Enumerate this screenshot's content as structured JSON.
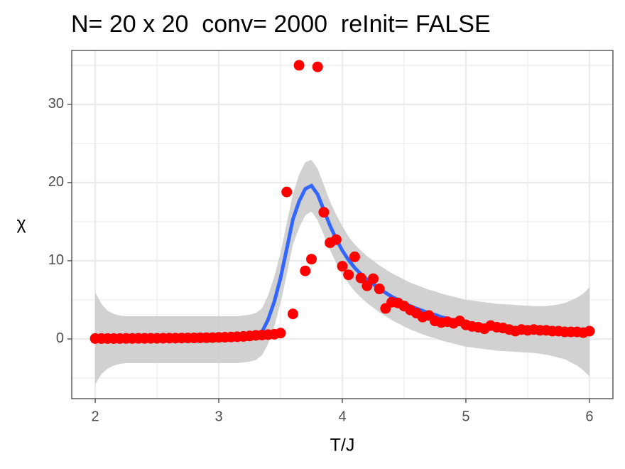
{
  "chart_data": {
    "type": "scatter",
    "title": "N= 20 x 20  conv= 2000  reInit= FALSE",
    "xlabel": "T/J",
    "ylabel": "χ",
    "xlim": [
      1.81,
      6.19
    ],
    "ylim": [
      -7.64,
      36.9
    ],
    "xticks": [
      2,
      3,
      4,
      5,
      6
    ],
    "yticks": [
      0,
      10,
      20,
      30
    ],
    "xminor": [
      2.5,
      3.5,
      4.5,
      5.5
    ],
    "yminor": [
      -5,
      5,
      15,
      25,
      35
    ],
    "grid": true,
    "x": [
      2,
      2.05,
      2.1,
      2.15,
      2.2,
      2.25,
      2.3,
      2.35,
      2.4,
      2.45,
      2.5,
      2.55,
      2.6,
      2.65,
      2.7,
      2.75,
      2.8,
      2.85,
      2.9,
      2.95,
      3,
      3.05,
      3.1,
      3.15,
      3.2,
      3.25,
      3.3,
      3.35,
      3.4,
      3.45,
      3.5,
      3.55,
      3.6,
      3.65,
      3.7,
      3.75,
      3.8,
      3.85,
      3.9,
      3.95,
      4,
      4.05,
      4.1,
      4.15,
      4.2,
      4.25,
      4.3,
      4.35,
      4.4,
      4.45,
      4.5,
      4.55,
      4.6,
      4.65,
      4.7,
      4.75,
      4.8,
      4.85,
      4.9,
      4.95,
      5,
      5.05,
      5.1,
      5.15,
      5.2,
      5.25,
      5.3,
      5.35,
      5.4,
      5.45,
      5.5,
      5.55,
      5.6,
      5.65,
      5.7,
      5.75,
      5.8,
      5.85,
      5.9,
      5.95,
      6
    ],
    "points": {
      "color": "#ff0000",
      "values": [
        0.05,
        0.05,
        0.05,
        0.05,
        0.05,
        0.06,
        0.06,
        0.07,
        0.07,
        0.08,
        0.08,
        0.09,
        0.1,
        0.1,
        0.11,
        0.12,
        0.13,
        0.14,
        0.15,
        0.17,
        0.2,
        0.22,
        0.25,
        0.28,
        0.32,
        0.38,
        0.45,
        0.5,
        0.55,
        0.6,
        0.75,
        18.8,
        3.2,
        35,
        8.7,
        10.2,
        34.8,
        16.2,
        12.3,
        12.7,
        9.3,
        8.2,
        10.5,
        7.8,
        6.8,
        7.7,
        6.4,
        3.9,
        4.7,
        4.6,
        4.2,
        3.7,
        3.3,
        2.8,
        3.0,
        2.3,
        2.1,
        2.2,
        2.0,
        2.3,
        1.8,
        1.6,
        1.5,
        1.3,
        1.7,
        1.5,
        1.4,
        1.2,
        1.0,
        1.2,
        1.1,
        1.2,
        1.1,
        1.1,
        1.0,
        1.0,
        0.9,
        0.9,
        0.9,
        0.8,
        1.0
      ]
    },
    "smooth": {
      "color": "#3366ff",
      "fill": "#cccccc",
      "values": [
        0.1,
        0,
        -0.1,
        -0.1,
        -0.1,
        -0.1,
        -0.1,
        -0.1,
        -0.1,
        -0.1,
        -0.1,
        -0.1,
        -0.1,
        -0.1,
        -0.1,
        -0.1,
        -0.1,
        -0.1,
        -0.1,
        -0.1,
        -0.1,
        -0.1,
        -0.1,
        -0.1,
        0,
        0.1,
        0.3,
        0.9,
        2.5,
        4.8,
        7.8,
        11.5,
        15.3,
        17.6,
        19.2,
        19.6,
        18.5,
        16.5,
        14.5,
        12.8,
        11.3,
        10.1,
        9.1,
        8.3,
        7.6,
        7.0,
        6.4,
        5.9,
        5.4,
        5.0,
        4.6,
        4.2,
        3.9,
        3.6,
        3.3,
        3.1,
        2.8,
        2.6,
        2.4,
        2.2,
        2.0,
        1.9,
        1.8,
        1.7,
        1.6,
        1.5,
        1.45,
        1.4,
        1.35,
        1.3,
        1.25,
        1.2,
        1.15,
        1.1,
        1.05,
        1.0,
        1.0,
        0.95,
        0.95,
        0.9,
        0.9
      ],
      "ymax": [
        6.0,
        4.5,
        3.6,
        3.2,
        3.0,
        2.9,
        2.9,
        2.9,
        2.9,
        2.9,
        2.9,
        2.9,
        2.9,
        2.9,
        2.9,
        2.9,
        2.9,
        2.9,
        2.9,
        2.9,
        2.9,
        2.9,
        2.9,
        2.9,
        3.0,
        3.1,
        3.3,
        3.9,
        5.6,
        8.0,
        11.0,
        14.8,
        18.5,
        21.0,
        22.6,
        22.9,
        21.8,
        19.7,
        17.6,
        15.9,
        14.4,
        13.1,
        12.1,
        11.3,
        10.6,
        10.0,
        9.4,
        8.9,
        8.4,
        8.0,
        7.6,
        7.2,
        6.9,
        6.6,
        6.3,
        6.1,
        5.8,
        5.6,
        5.4,
        5.2,
        5.0,
        4.9,
        4.8,
        4.7,
        4.6,
        4.5,
        4.45,
        4.4,
        4.35,
        4.3,
        4.25,
        4.2,
        4.2,
        4.2,
        4.3,
        4.4,
        4.6,
        4.9,
        5.3,
        5.8,
        6.6
      ],
      "ymin": [
        -5.8,
        -4.5,
        -3.8,
        -3.4,
        -3.2,
        -3.1,
        -3.1,
        -3.1,
        -3.1,
        -3.1,
        -3.1,
        -3.1,
        -3.1,
        -3.1,
        -3.1,
        -3.1,
        -3.1,
        -3.1,
        -3.1,
        -3.1,
        -3.1,
        -3.1,
        -3.1,
        -3.1,
        -3.0,
        -2.9,
        -2.7,
        -2.1,
        -0.6,
        1.6,
        4.6,
        8.2,
        12.1,
        14.2,
        15.8,
        16.3,
        15.2,
        13.3,
        11.4,
        9.7,
        8.2,
        7.1,
        6.1,
        5.3,
        4.6,
        4.0,
        3.4,
        2.9,
        2.4,
        2.0,
        1.6,
        1.2,
        0.9,
        0.6,
        0.3,
        0.1,
        -0.2,
        -0.4,
        -0.6,
        -0.8,
        -1.0,
        -1.1,
        -1.2,
        -1.3,
        -1.4,
        -1.5,
        -1.55,
        -1.6,
        -1.65,
        -1.7,
        -1.75,
        -1.8,
        -1.9,
        -2.0,
        -2.2,
        -2.4,
        -2.6,
        -3.0,
        -3.4,
        -4.0,
        -4.8
      ]
    }
  }
}
